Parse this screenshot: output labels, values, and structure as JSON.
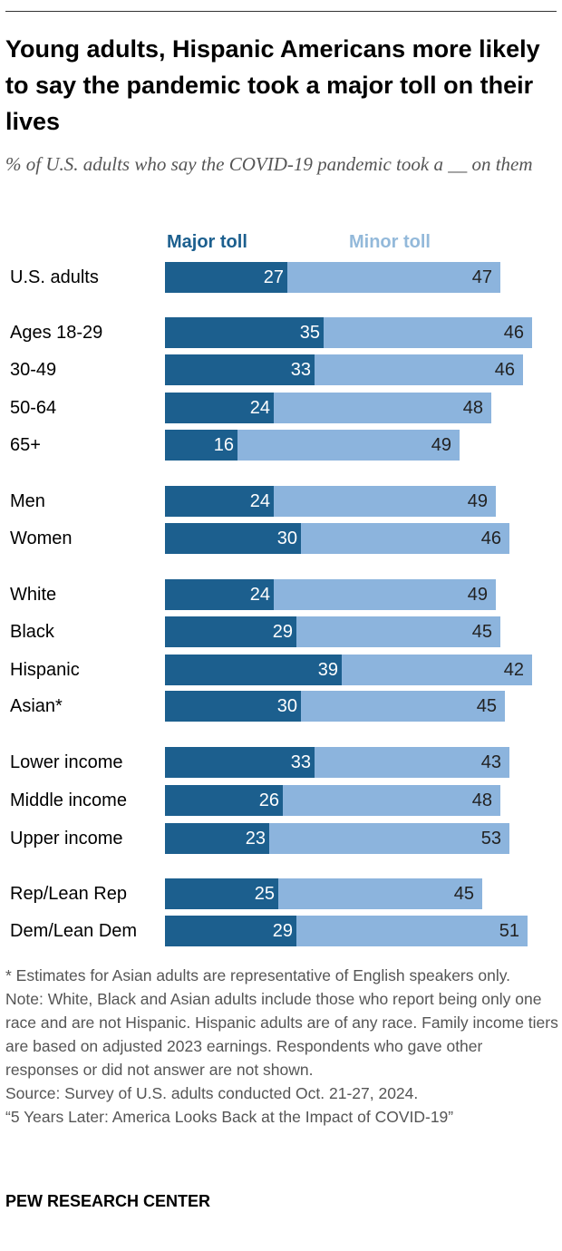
{
  "title": "Young adults, Hispanic Americans more likely to say the pandemic took a major toll on their lives",
  "subtitle": "% of U.S. adults who say the COVID-19 pandemic took a __ on them",
  "colors": {
    "major": "#1c5f8e",
    "minor": "#8cb4dd",
    "minor_legend": "#93b9da"
  },
  "chart_data": {
    "type": "bar",
    "orientation": "horizontal",
    "stacked": true,
    "categories": [
      "U.S. adults",
      "Ages 18-29",
      "30-49",
      "50-64",
      "65+",
      "Men",
      "Women",
      "White",
      "Black",
      "Hispanic",
      "Asian*",
      "Lower income",
      "Middle income",
      "Upper income",
      "Rep/Lean Rep",
      "Dem/Lean Dem"
    ],
    "series": [
      {
        "name": "Major toll",
        "values": [
          27,
          35,
          33,
          24,
          16,
          24,
          30,
          24,
          29,
          39,
          30,
          33,
          26,
          23,
          25,
          29
        ]
      },
      {
        "name": "Minor toll",
        "values": [
          47,
          46,
          46,
          48,
          49,
          49,
          46,
          49,
          45,
          42,
          45,
          43,
          48,
          53,
          45,
          51
        ]
      }
    ],
    "legend": "top"
  },
  "notes": [
    "* Estimates for Asian adults are representative of English speakers only.",
    "Note: White, Black and Asian adults include those who report being only one race and are not Hispanic. Hispanic adults are of any race. Family income tiers are based on adjusted 2023 earnings. Respondents who gave other responses or did not answer are not shown.",
    "Source: Survey of U.S. adults conducted Oct. 21-27, 2024.",
    "“5 Years Later: America Looks Back at the Impact of COVID-19”"
  ],
  "brand": "PEW RESEARCH CENTER"
}
